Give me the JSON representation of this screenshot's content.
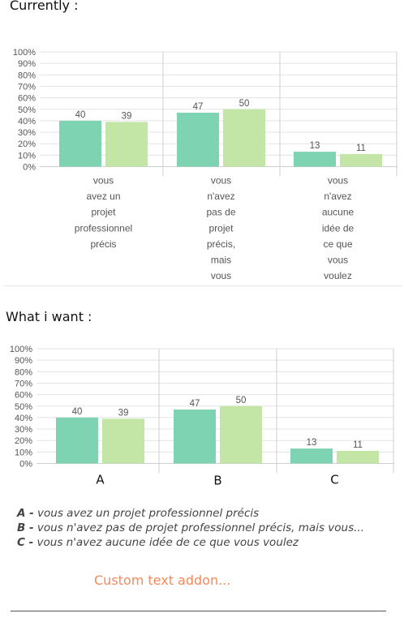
{
  "headings": {
    "currently": "Currently :",
    "what_i_want": "What i want :"
  },
  "colors": {
    "series1": "#7ed3b2",
    "series2": "#c3e6a6",
    "grid": "#e3e3e3",
    "axis": "#cfcfcf"
  },
  "chart_data": [
    {
      "type": "bar",
      "ylim": [
        0,
        100
      ],
      "yticks": [
        "100%",
        "90%",
        "80%",
        "70%",
        "60%",
        "50%",
        "40%",
        "30%",
        "20%",
        "10%",
        "0%"
      ],
      "categories": [
        [
          "vous",
          "avez un",
          "projet",
          "professionnel",
          "précis"
        ],
        [
          "vous",
          "n'avez",
          "pas de",
          "projet",
          "précis,",
          "mais",
          "vous"
        ],
        [
          "vous",
          "n'avez",
          "aucune",
          "idée de",
          "ce que",
          "vous",
          "voulez"
        ]
      ],
      "series": [
        {
          "values": [
            40,
            47,
            13
          ]
        },
        {
          "values": [
            39,
            50,
            11
          ]
        }
      ],
      "grid": true
    },
    {
      "type": "bar",
      "ylim": [
        0,
        100
      ],
      "yticks": [
        "100%",
        "90%",
        "80%",
        "70%",
        "60%",
        "50%",
        "40%",
        "30%",
        "20%",
        "10%",
        "0%"
      ],
      "categories": [
        "A",
        "B",
        "C"
      ],
      "series": [
        {
          "values": [
            40,
            47,
            13
          ]
        },
        {
          "values": [
            39,
            50,
            11
          ]
        }
      ],
      "grid": true
    }
  ],
  "legend": [
    {
      "key": "A -",
      "text": " vous avez un projet professionnel précis"
    },
    {
      "key": "B -",
      "text": " vous n'avez pas de projet professionnel précis, mais vous..."
    },
    {
      "key": "C -",
      "text": " vous n'avez aucune idée de ce que vous voulez"
    }
  ],
  "addon": "Custom text addon..."
}
